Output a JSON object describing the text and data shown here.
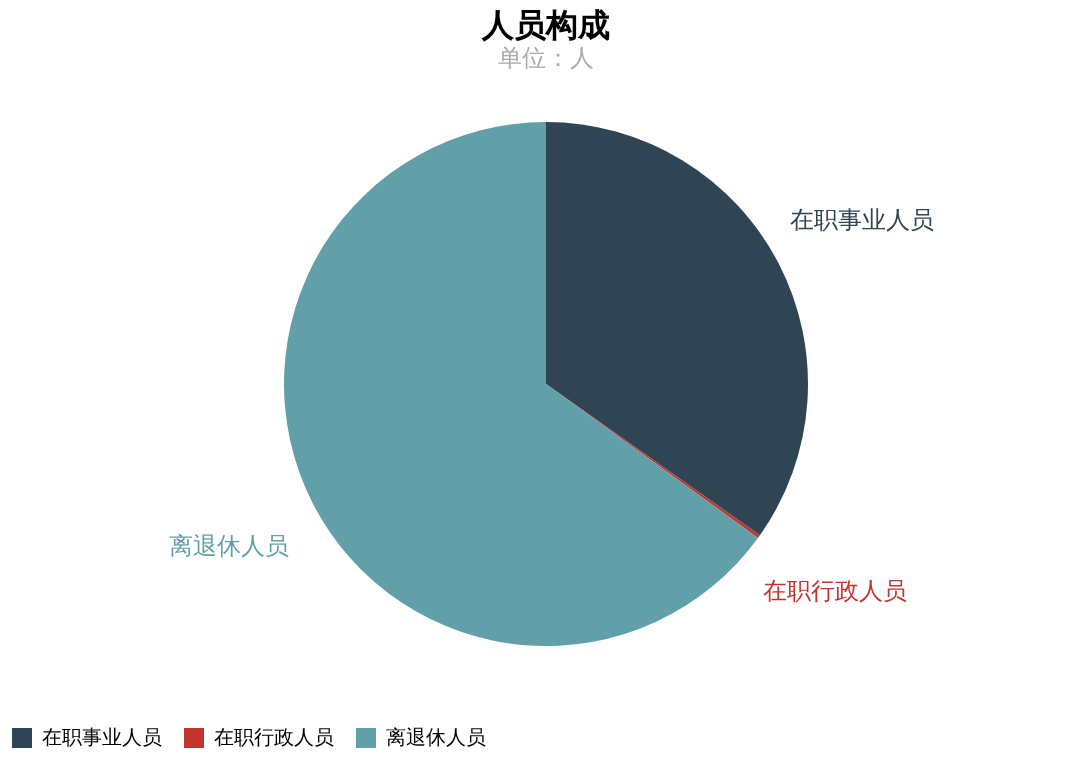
{
  "chart_data": {
    "type": "pie",
    "title": "人员构成",
    "subtitle": "单位：人",
    "categories": [
      "在职事业人员",
      "在职行政人员",
      "离退休人员"
    ],
    "values": [
      34.8,
      0.2,
      65.0
    ],
    "colors": [
      "#2f4554",
      "#c23531",
      "#61a0a8"
    ],
    "legend": "bottom"
  }
}
